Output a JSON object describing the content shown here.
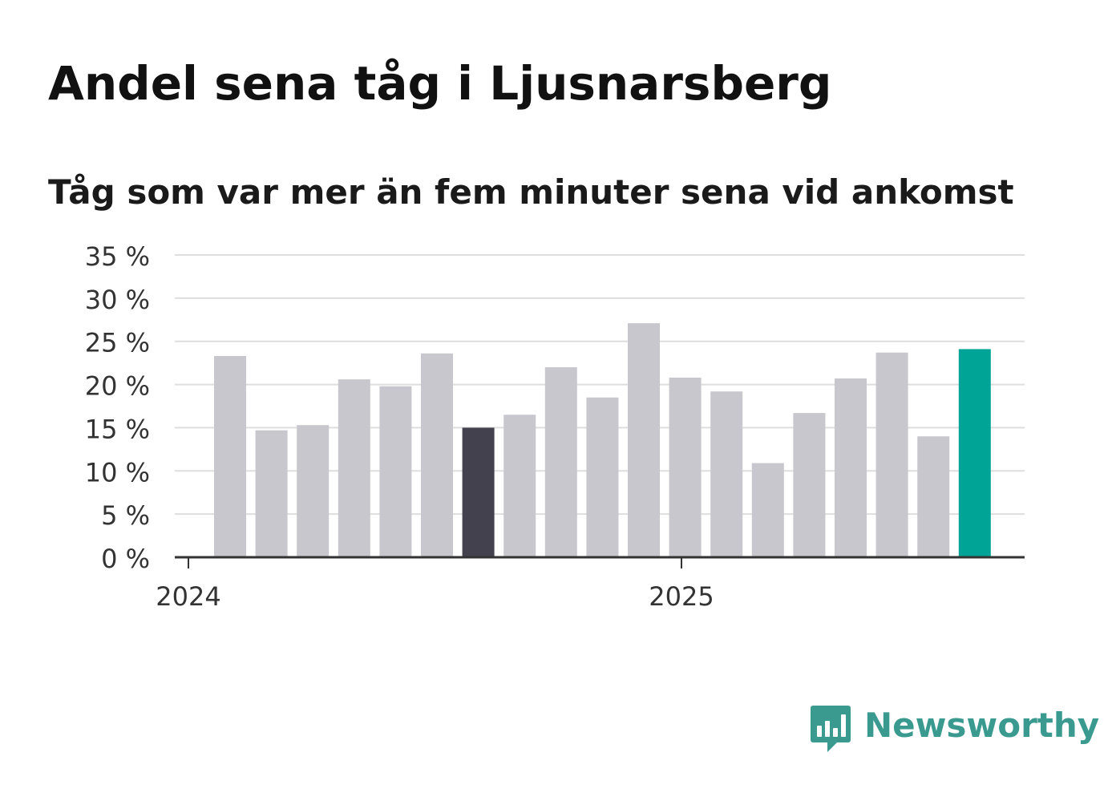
{
  "header": {
    "title": "Andel sena tåg i Ljusnarsberg",
    "subtitle": "Tåg som var mer än fem minuter sena vid ankomst"
  },
  "brand": {
    "name": "Newsworthy",
    "icon": "bar-chart-speech-bubble-icon",
    "color": "#3a9a90"
  },
  "colors": {
    "bar_default": "#c8c7cd",
    "bar_highlight_dark": "#43414d",
    "bar_latest": "#00a497",
    "grid": "#dedede",
    "axis": "#333333",
    "tick_text": "#333333"
  },
  "chart_data": {
    "type": "bar",
    "title": "Andel sena tåg i Ljusnarsberg",
    "subtitle": "Tåg som var mer än fem minuter sena vid ankomst",
    "x_tick_labels": [
      "2024",
      "2025"
    ],
    "y_tick_labels": [
      "0 %",
      "5 %",
      "10 %",
      "15 %",
      "20 %",
      "25 %",
      "30 %",
      "35 %"
    ],
    "ylim": [
      0,
      35
    ],
    "grid": true,
    "legend": "none",
    "values": [
      23.3,
      14.7,
      15.3,
      20.6,
      19.8,
      23.6,
      15.0,
      16.5,
      22.0,
      18.5,
      27.1,
      20.8,
      19.2,
      10.9,
      16.7,
      20.7,
      23.7,
      14.0,
      24.1
    ],
    "highlight": {
      "dark_index": 6,
      "latest_index": 18
    }
  }
}
